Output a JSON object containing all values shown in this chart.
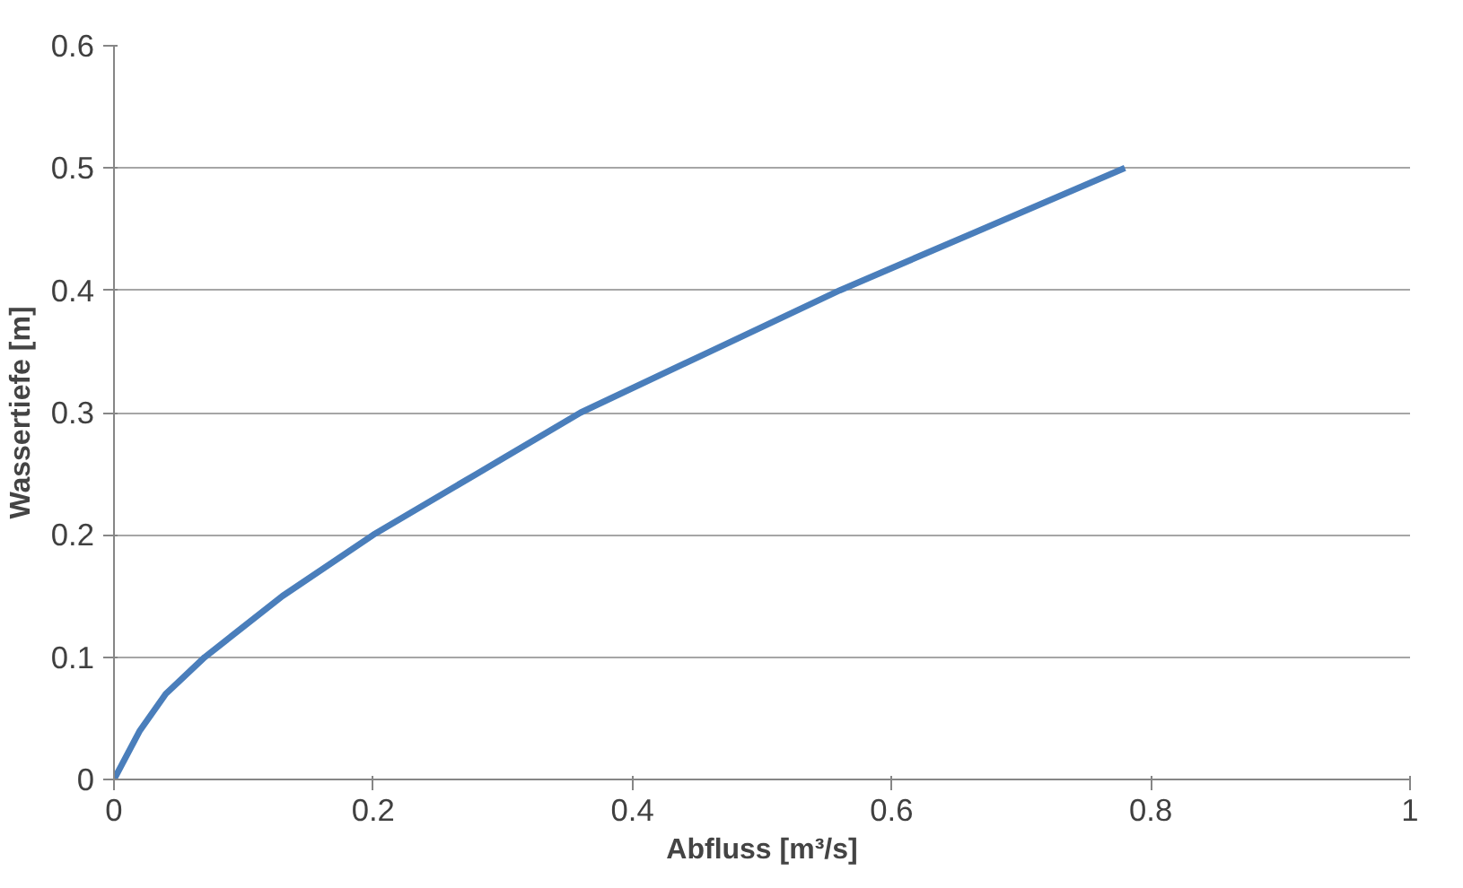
{
  "chart_data": {
    "type": "line",
    "xlabel": "Abfluss [m³/s]",
    "ylabel": "Wassertiefe [m]",
    "x": [
      0,
      0.005,
      0.02,
      0.04,
      0.07,
      0.13,
      0.2,
      0.28,
      0.36,
      0.46,
      0.56,
      0.67,
      0.78
    ],
    "series": [
      {
        "color": "#4a7ebb",
        "values": [
          0,
          0.01,
          0.04,
          0.07,
          0.1,
          0.15,
          0.2,
          0.25,
          0.3,
          0.35,
          0.4,
          0.45,
          0.5
        ]
      }
    ],
    "xlim": [
      0,
      1
    ],
    "xticks": [
      0,
      0.2,
      0.4,
      0.6,
      0.8,
      1
    ],
    "ylim": [
      0,
      0.6
    ],
    "yticks": [
      0,
      0.1,
      0.2,
      0.3,
      0.4,
      0.5,
      0.6
    ],
    "grid": "y",
    "line_style": "solid",
    "marker": "none"
  }
}
